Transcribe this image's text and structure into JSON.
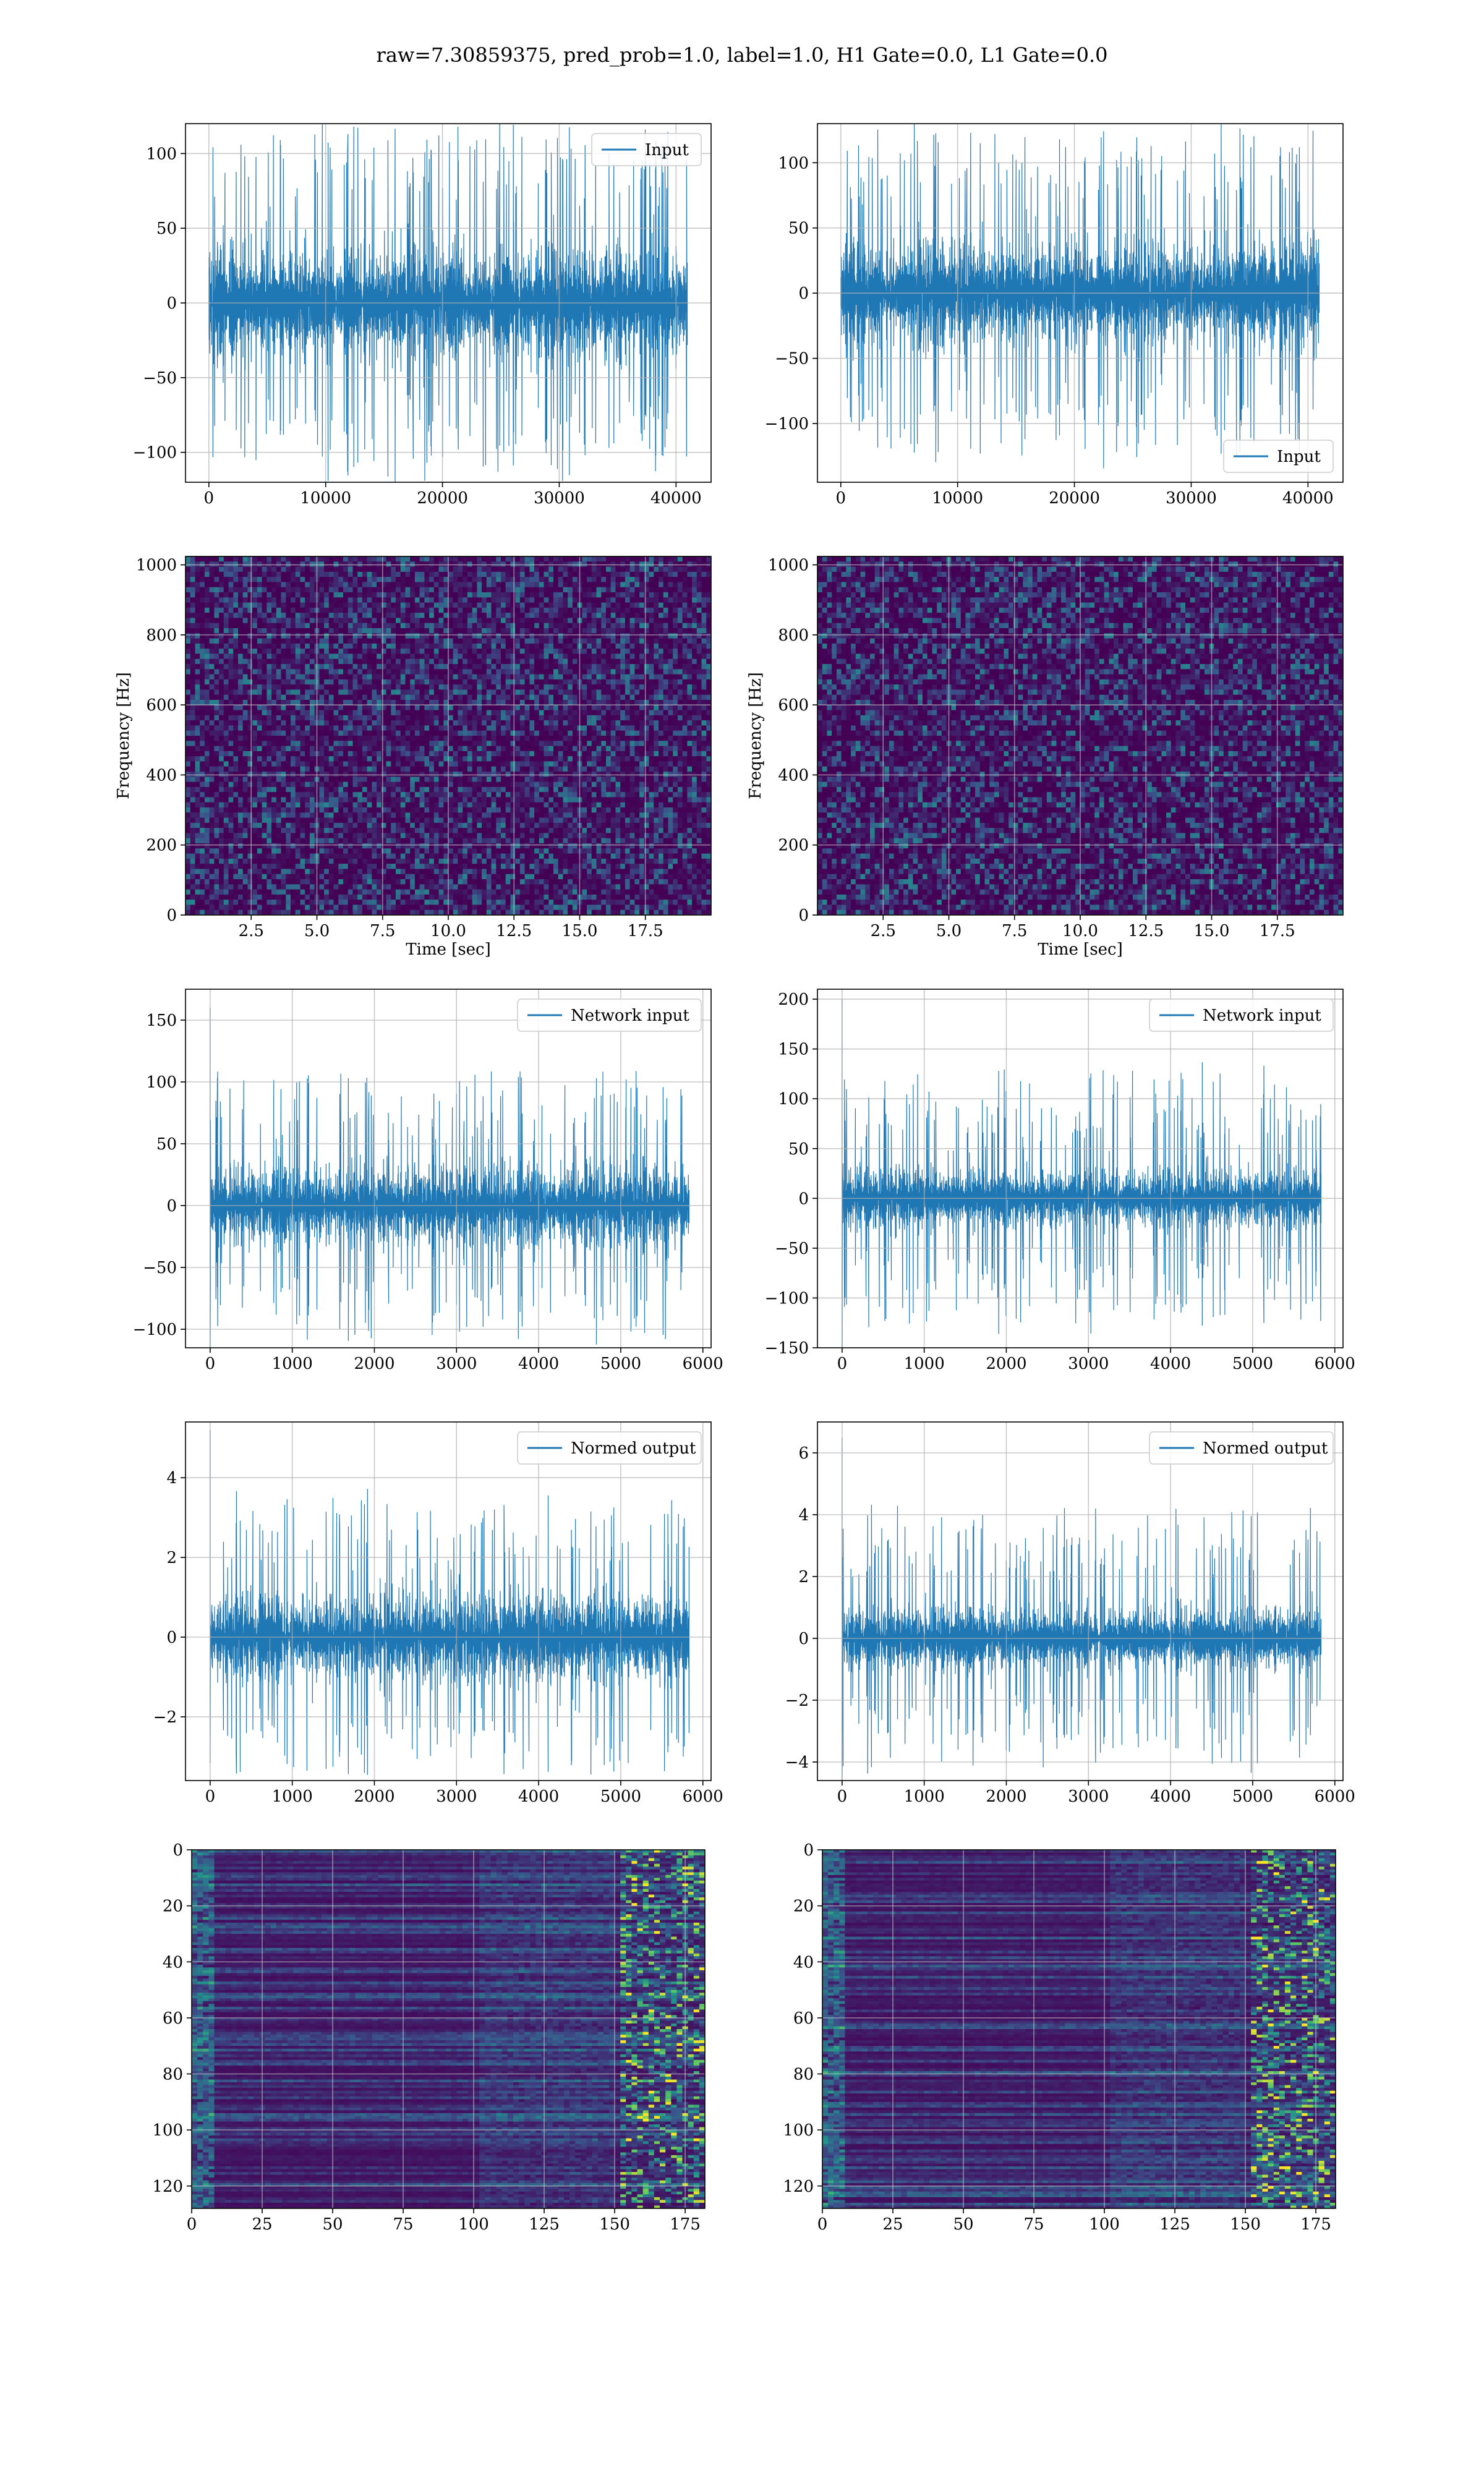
{
  "figure": {
    "title": "raw=7.30859375, pred_prob=1.0, label=1.0, H1 Gate=0.0, L1 Gate=0.0"
  },
  "colors": {
    "line": "#1f77b4",
    "grid": "#b0b0b0",
    "viridis_low": "#440154",
    "viridis_mid": "#21918c",
    "viridis_high": "#fde725"
  },
  "chart_data": [
    {
      "id": "h1-input",
      "type": "line",
      "series": [
        {
          "name": "Input"
        }
      ],
      "legend": "top-right",
      "xlim": [
        -2000,
        43000
      ],
      "ylim": [
        -120,
        120
      ],
      "xticks": [
        0,
        10000,
        20000,
        30000,
        40000
      ],
      "xtick_labels": [
        "0",
        "10000",
        "20000",
        "30000",
        "40000"
      ],
      "yticks": [
        -100,
        -50,
        0,
        50,
        100
      ],
      "ytick_labels": [
        "−100",
        "−50",
        "0",
        "50",
        "100"
      ],
      "x_range": [
        0,
        40960
      ],
      "typical_amplitude": 75,
      "peak_amplitude": 120,
      "grid": true
    },
    {
      "id": "l1-input",
      "type": "line",
      "series": [
        {
          "name": "Input"
        }
      ],
      "legend": "bottom-right",
      "xlim": [
        -2000,
        43000
      ],
      "ylim": [
        -145,
        130
      ],
      "xticks": [
        0,
        10000,
        20000,
        30000,
        40000
      ],
      "xtick_labels": [
        "0",
        "10000",
        "20000",
        "30000",
        "40000"
      ],
      "yticks": [
        -100,
        -50,
        0,
        50,
        100
      ],
      "ytick_labels": [
        "−100",
        "−50",
        "0",
        "50",
        "100"
      ],
      "x_range": [
        0,
        40960
      ],
      "typical_amplitude": 80,
      "peak_amplitude": 125,
      "grid": true
    },
    {
      "id": "h1-spectrogram",
      "type": "heatmap",
      "xlabel": "Time [sec]",
      "ylabel": "Frequency [Hz]",
      "xlim": [
        0,
        20
      ],
      "ylim": [
        0,
        1024
      ],
      "xticks": [
        2.5,
        5,
        7.5,
        10,
        12.5,
        15,
        17.5
      ],
      "xtick_labels": [
        "2.5",
        "5.0",
        "7.5",
        "10.0",
        "12.5",
        "15.0",
        "17.5"
      ],
      "yticks": [
        0,
        200,
        400,
        600,
        800,
        1000
      ],
      "ytick_labels": [
        "0",
        "200",
        "400",
        "600",
        "800",
        "1000"
      ],
      "colormap": "viridis",
      "grid": true
    },
    {
      "id": "l1-spectrogram",
      "type": "heatmap",
      "xlabel": "Time [sec]",
      "ylabel": "Frequency [Hz]",
      "xlim": [
        0,
        20
      ],
      "ylim": [
        0,
        1024
      ],
      "xticks": [
        2.5,
        5,
        7.5,
        10,
        12.5,
        15,
        17.5
      ],
      "xtick_labels": [
        "2.5",
        "5.0",
        "7.5",
        "10.0",
        "12.5",
        "15.0",
        "17.5"
      ],
      "yticks": [
        0,
        200,
        400,
        600,
        800,
        1000
      ],
      "ytick_labels": [
        "0",
        "200",
        "400",
        "600",
        "800",
        "1000"
      ],
      "colormap": "viridis",
      "grid": true
    },
    {
      "id": "h1-network-input",
      "type": "line",
      "series": [
        {
          "name": "Network input"
        }
      ],
      "legend": "top-right",
      "xlim": [
        -300,
        6100
      ],
      "ylim": [
        -115,
        175
      ],
      "xticks": [
        0,
        1000,
        2000,
        3000,
        4000,
        5000,
        6000
      ],
      "xtick_labels": [
        "0",
        "1000",
        "2000",
        "3000",
        "4000",
        "5000",
        "6000"
      ],
      "yticks": [
        -100,
        -50,
        0,
        50,
        100,
        150
      ],
      "ytick_labels": [
        "−100",
        "−50",
        "0",
        "50",
        "100",
        "150"
      ],
      "x_range": [
        0,
        5832
      ],
      "spike": {
        "x": 0,
        "y": 160
      },
      "typical_amplitude": 65,
      "peak_amplitude": 110,
      "grid": true
    },
    {
      "id": "l1-network-input",
      "type": "line",
      "series": [
        {
          "name": "Network input"
        }
      ],
      "legend": "top-right",
      "xlim": [
        -300,
        6100
      ],
      "ylim": [
        -150,
        210
      ],
      "xticks": [
        0,
        1000,
        2000,
        3000,
        4000,
        5000,
        6000
      ],
      "xtick_labels": [
        "0",
        "1000",
        "2000",
        "3000",
        "4000",
        "5000",
        "6000"
      ],
      "yticks": [
        -150,
        -100,
        -50,
        0,
        50,
        100,
        150,
        200
      ],
      "ytick_labels": [
        "−150",
        "−100",
        "−50",
        "0",
        "50",
        "100",
        "150",
        "200"
      ],
      "x_range": [
        0,
        5832
      ],
      "spike": {
        "x": 0,
        "y": 200
      },
      "typical_amplitude": 60,
      "peak_amplitude": 130,
      "grid": true
    },
    {
      "id": "h1-normed-output",
      "type": "line",
      "series": [
        {
          "name": "Normed output"
        }
      ],
      "legend": "top-right",
      "xlim": [
        -300,
        6100
      ],
      "ylim": [
        -3.6,
        5.4
      ],
      "xticks": [
        0,
        1000,
        2000,
        3000,
        4000,
        5000,
        6000
      ],
      "xtick_labels": [
        "0",
        "1000",
        "2000",
        "3000",
        "4000",
        "5000",
        "6000"
      ],
      "yticks": [
        -2,
        0,
        2,
        4
      ],
      "ytick_labels": [
        "−2",
        "0",
        "2",
        "4"
      ],
      "x_range": [
        0,
        5832
      ],
      "spike": {
        "x": 0,
        "y": 5.2
      },
      "typical_amplitude": 2.2,
      "peak_amplitude": 3.5,
      "grid": true
    },
    {
      "id": "l1-normed-output",
      "type": "line",
      "series": [
        {
          "name": "Normed output"
        }
      ],
      "legend": "top-right",
      "xlim": [
        -300,
        6100
      ],
      "ylim": [
        -4.6,
        7.0
      ],
      "xticks": [
        0,
        1000,
        2000,
        3000,
        4000,
        5000,
        6000
      ],
      "xtick_labels": [
        "0",
        "1000",
        "2000",
        "3000",
        "4000",
        "5000",
        "6000"
      ],
      "yticks": [
        -4,
        -2,
        0,
        2,
        4,
        6
      ],
      "ytick_labels": [
        "−4",
        "−2",
        "0",
        "2",
        "4",
        "6"
      ],
      "x_range": [
        0,
        5832
      ],
      "spike": {
        "x": 0,
        "y": 6.5
      },
      "typical_amplitude": 2.0,
      "peak_amplitude": 4.3,
      "grid": true
    },
    {
      "id": "h1-feature-map",
      "type": "heatmap",
      "xlim": [
        0,
        182
      ],
      "ylim": [
        128,
        0
      ],
      "xticks": [
        0,
        25,
        50,
        75,
        100,
        125,
        150,
        175
      ],
      "xtick_labels": [
        "0",
        "25",
        "50",
        "75",
        "100",
        "125",
        "150",
        "175"
      ],
      "yticks": [
        0,
        20,
        40,
        60,
        80,
        100,
        120
      ],
      "ytick_labels": [
        "0",
        "20",
        "40",
        "60",
        "80",
        "100",
        "120"
      ],
      "colormap": "viridis",
      "grid": true
    },
    {
      "id": "l1-feature-map",
      "type": "heatmap",
      "xlim": [
        0,
        182
      ],
      "ylim": [
        128,
        0
      ],
      "xticks": [
        0,
        25,
        50,
        75,
        100,
        125,
        150,
        175
      ],
      "xtick_labels": [
        "0",
        "25",
        "50",
        "75",
        "100",
        "125",
        "150",
        "175"
      ],
      "yticks": [
        0,
        20,
        40,
        60,
        80,
        100,
        120
      ],
      "ytick_labels": [
        "0",
        "20",
        "40",
        "60",
        "80",
        "100",
        "120"
      ],
      "colormap": "viridis",
      "grid": true
    }
  ]
}
